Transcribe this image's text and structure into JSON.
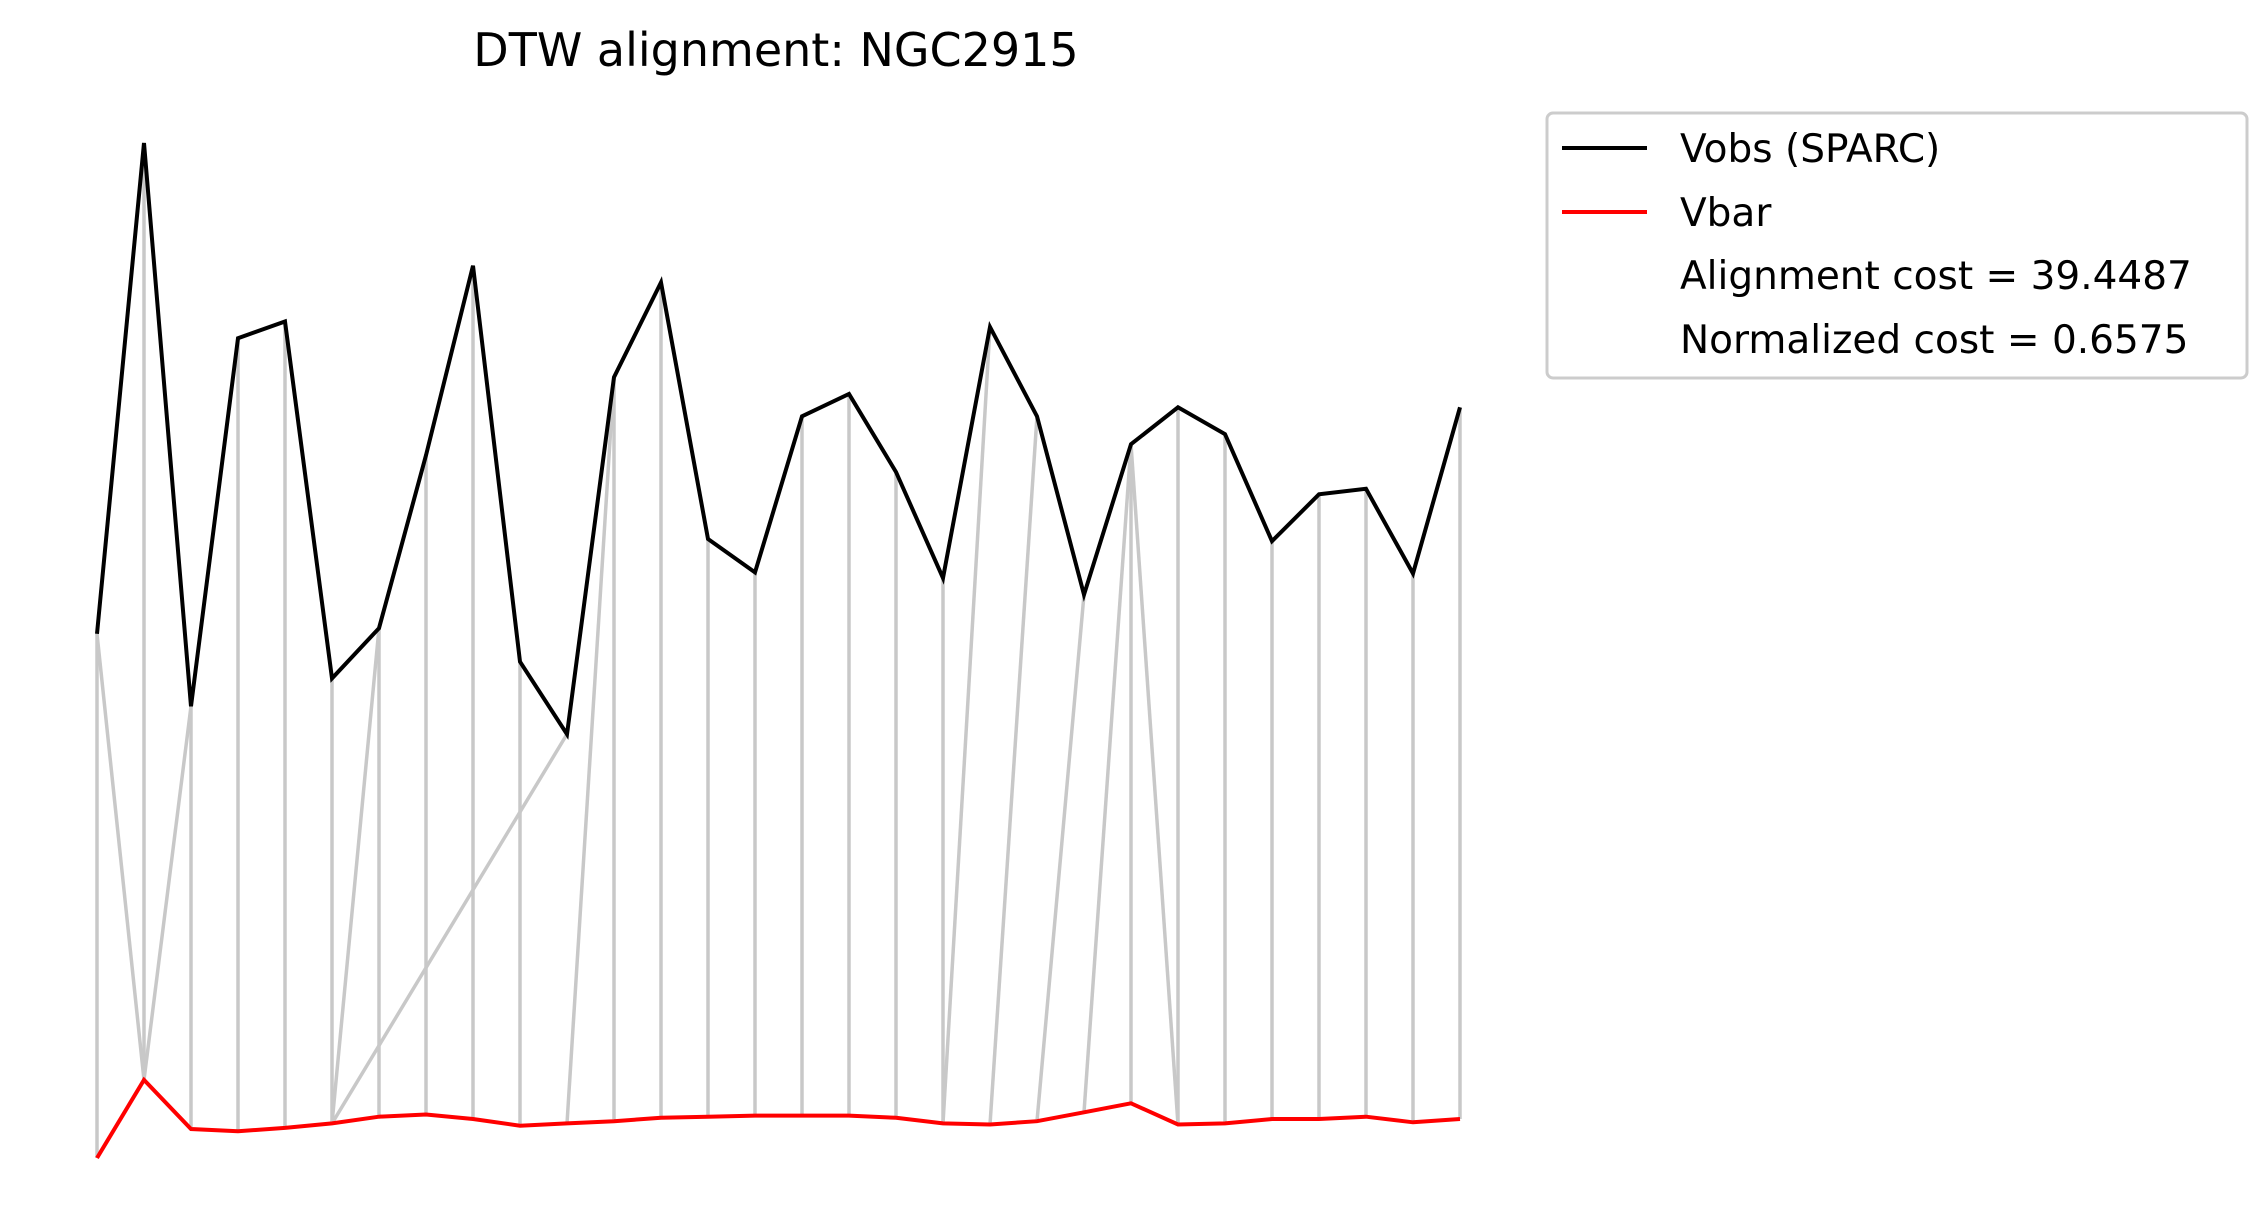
{
  "chart_data": {
    "type": "line",
    "title": "DTW alignment: NGC2915",
    "xlabel": "",
    "ylabel": "",
    "axes_visible": false,
    "grid": false,
    "legend_placement": "outside-top-right",
    "x": [
      0,
      1,
      2,
      3,
      4,
      5,
      6,
      7,
      8,
      9,
      10,
      11,
      12,
      13,
      14,
      15,
      16,
      17,
      18,
      19,
      20,
      21,
      22,
      23,
      24,
      25,
      26,
      27,
      28,
      29
    ],
    "series": [
      {
        "name": "Vobs (SPARC)",
        "color": "#000000",
        "values": [
          55.0,
          99.0,
          48.5,
          81.5,
          83.0,
          51.0,
          55.5,
          71.0,
          88.0,
          52.5,
          46.0,
          78.0,
          86.5,
          63.5,
          60.5,
          74.5,
          76.5,
          69.5,
          60.0,
          82.5,
          74.5,
          58.5,
          72.0,
          75.3,
          72.9,
          63.3,
          67.5,
          68.0,
          60.4,
          75.3
        ]
      },
      {
        "name": "Vbar",
        "color": "#ff0000",
        "values": [
          8.0,
          15.0,
          10.6,
          10.4,
          10.7,
          11.1,
          11.7,
          11.9,
          11.5,
          10.9,
          11.1,
          11.3,
          11.6,
          11.7,
          11.8,
          11.8,
          11.8,
          11.6,
          11.1,
          11.0,
          11.3,
          12.1,
          12.9,
          11.0,
          11.1,
          11.5,
          11.5,
          11.7,
          11.2,
          11.5
        ]
      }
    ],
    "alignment_color": "#c8c8c8",
    "alignment_path": [
      [
        0,
        0
      ],
      [
        0,
        1
      ],
      [
        1,
        1
      ],
      [
        2,
        1
      ],
      [
        2,
        2
      ],
      [
        3,
        3
      ],
      [
        4,
        4
      ],
      [
        5,
        5
      ],
      [
        6,
        5
      ],
      [
        6,
        6
      ],
      [
        7,
        7
      ],
      [
        8,
        8
      ],
      [
        9,
        9
      ],
      [
        10,
        5
      ],
      [
        11,
        10
      ],
      [
        11,
        11
      ],
      [
        12,
        12
      ],
      [
        13,
        13
      ],
      [
        14,
        14
      ],
      [
        15,
        15
      ],
      [
        16,
        16
      ],
      [
        17,
        17
      ],
      [
        18,
        18
      ],
      [
        19,
        18
      ],
      [
        20,
        19
      ],
      [
        21,
        20
      ],
      [
        22,
        21
      ],
      [
        22,
        22
      ],
      [
        22,
        23
      ],
      [
        23,
        23
      ],
      [
        24,
        24
      ],
      [
        25,
        25
      ],
      [
        26,
        26
      ],
      [
        27,
        27
      ],
      [
        28,
        28
      ],
      [
        29,
        29
      ]
    ],
    "annotations": [
      "Alignment cost = 39.4487",
      "Normalized cost = 0.6575"
    ]
  }
}
